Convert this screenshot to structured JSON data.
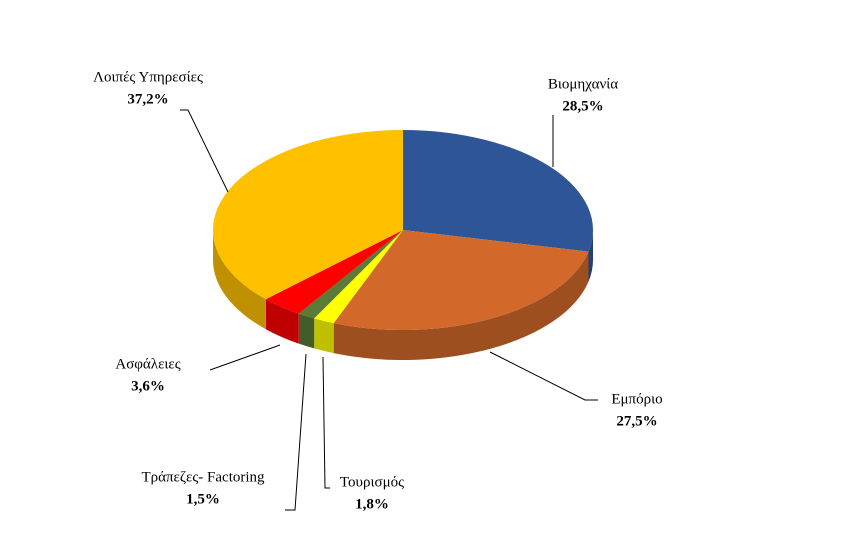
{
  "chart_data": {
    "type": "pie",
    "categories": [
      "Βιομηχανία",
      "Εμπόριο",
      "Τουρισμός",
      "Τράπεζες- Factoring",
      "Ασφάλειες",
      "Λοιπές Υπηρεσίες"
    ],
    "values": [
      28.5,
      27.5,
      1.8,
      1.5,
      3.6,
      37.2
    ],
    "value_labels": [
      "28,5%",
      "27,5%",
      "1,8%",
      "1,5%",
      "3,6%",
      "37,2%"
    ],
    "colors": [
      "#2e5597",
      "#d2692a",
      "#ffff00",
      "#5a7a35",
      "#ff0000",
      "#ffc000"
    ]
  }
}
